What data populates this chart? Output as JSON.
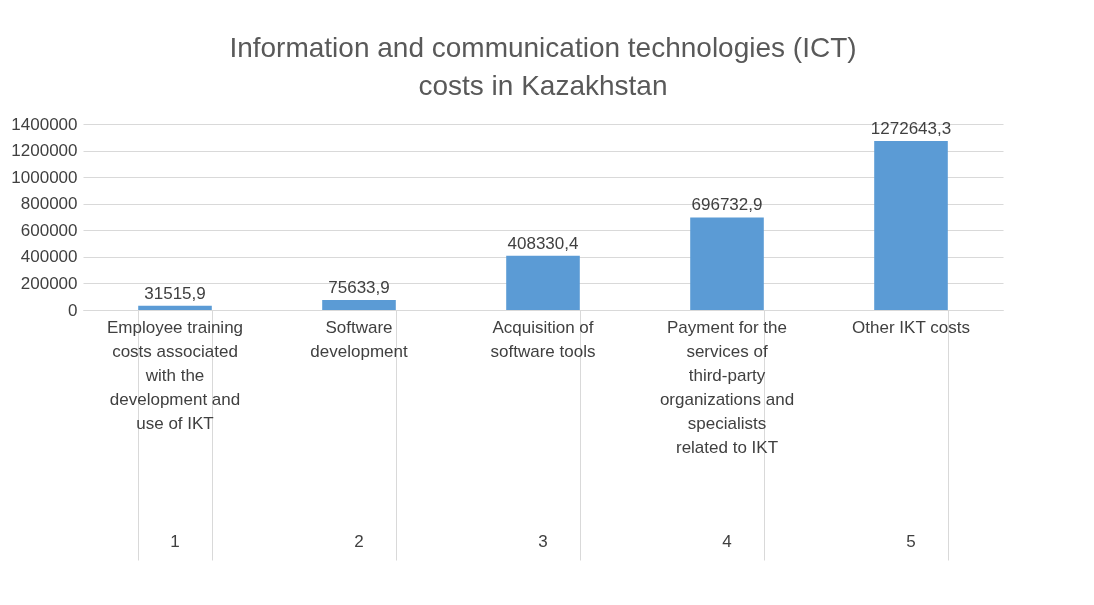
{
  "chart_data": {
    "type": "bar",
    "title": "Information and communication technologies (ICT) costs in Kazakhstan",
    "categories": [
      "Employee training costs associated with the development and use of IKT",
      "Software development",
      "Acquisition of software tools",
      "Payment for the services of third-party organizations and specialists related to IKT",
      "Other IKT costs"
    ],
    "values": [
      31515.9,
      75633.9,
      408330.4,
      696732.9,
      1272643.3
    ],
    "value_labels": [
      "31515,9",
      "75633,9",
      "408330,4",
      "696732,9",
      "1272643,3"
    ],
    "color": "#5b9bd5",
    "ylim": [
      0,
      1400000
    ],
    "yticks": [
      0,
      200000,
      400000,
      600000,
      800000,
      1000000,
      1200000,
      1400000
    ],
    "grid": "y",
    "annotations": [
      "1",
      "2",
      "3",
      "4",
      "5"
    ]
  }
}
